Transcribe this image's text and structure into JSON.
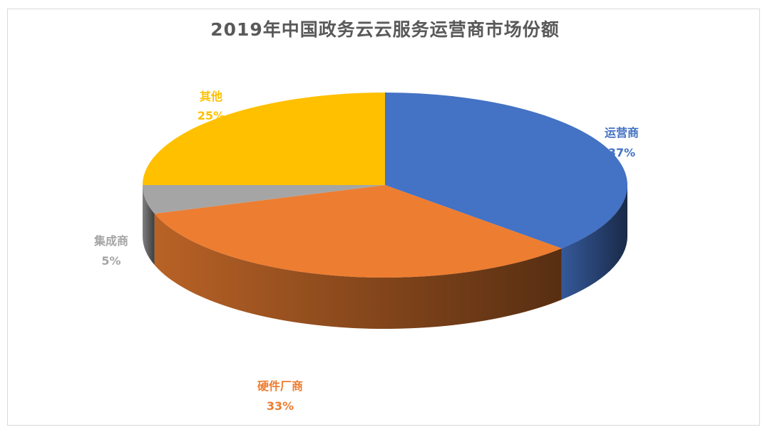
{
  "chart_data": {
    "type": "pie",
    "title": "2019年中国政务云云服务运营商市场份额",
    "categories": [
      "运营商",
      "硬件厂商",
      "集成商",
      "其他"
    ],
    "values": [
      37,
      33,
      5,
      25
    ],
    "value_labels": [
      "37%",
      "33%",
      "5%",
      "25%"
    ],
    "colors": [
      "#4472c4",
      "#ed7d31",
      "#a5a5a5",
      "#ffc000"
    ],
    "legend": "none",
    "style": "3d"
  }
}
